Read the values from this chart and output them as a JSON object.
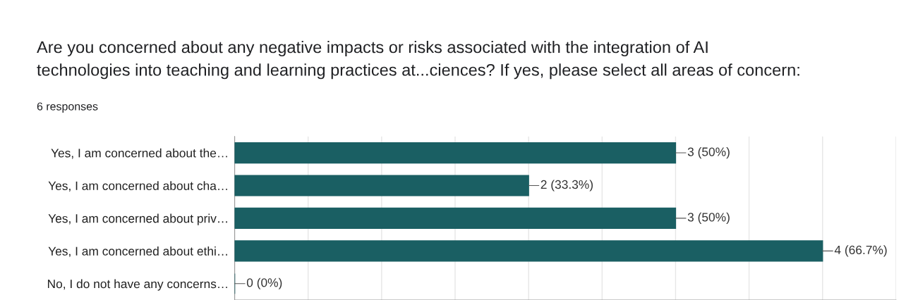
{
  "chart_data": {
    "type": "bar",
    "orientation": "horizontal",
    "title": "Are you concerned about any negative impacts or risks associated with the integration of AI\ntechnologies into teaching and learning practices at...ciences? If yes, please select all areas of concern:",
    "subtitle": "6 responses",
    "categories": [
      "Yes, I am concerned about the…",
      "Yes, I am concerned about cha…",
      "Yes, I am concerned about priv…",
      "Yes, I am concerned about ethi…",
      "No, I do not have any concerns…"
    ],
    "values": [
      3,
      2,
      3,
      4,
      0
    ],
    "value_labels": [
      "3 (50%)",
      "2 (33.3%)",
      "3 (50%)",
      "4 (66.7%)",
      "0 (0%)"
    ],
    "color": "#1a5f63",
    "xlim": [
      0,
      4.5
    ],
    "xticks": [
      {
        "value": 0,
        "label": null
      },
      {
        "value": 0.5,
        "label": null
      },
      {
        "value": 1,
        "label": null
      },
      {
        "value": 1.5,
        "label": null
      },
      {
        "value": 2,
        "label": null
      },
      {
        "value": 2.5,
        "label": null
      },
      {
        "value": 3,
        "label": null
      },
      {
        "value": 3.5,
        "label": null
      },
      {
        "value": 4,
        "label": null
      },
      {
        "value": 4.5,
        "label": null
      }
    ],
    "tick_labels": "y",
    "grid": "x",
    "legend": false
  }
}
